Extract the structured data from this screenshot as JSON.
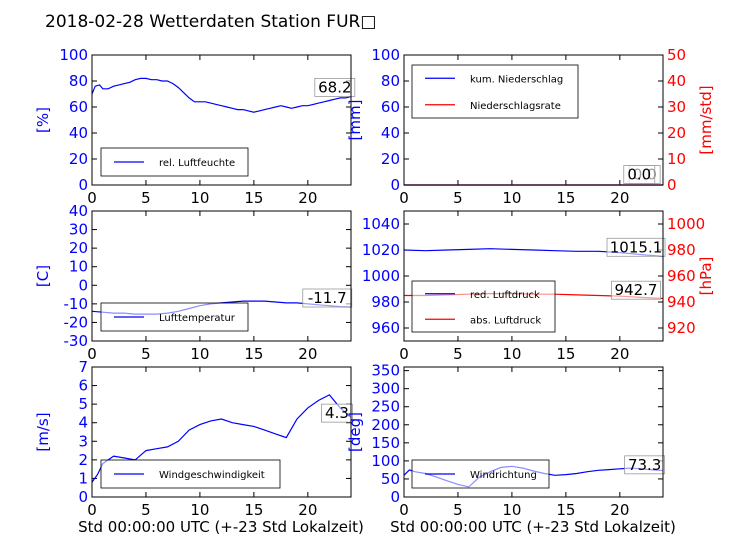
{
  "figure_title": "2018-02-28 Wetterdaten Station FUR□",
  "colors": {
    "blue": "#0000ff",
    "red": "#ff0000",
    "black": "#000000"
  },
  "chart_data": [
    {
      "type": "line",
      "id": "humidity",
      "ylabel": "[%]",
      "xlim": [
        0,
        24
      ],
      "ylim": [
        0,
        100
      ],
      "xticks": [
        0,
        5,
        10,
        15,
        20
      ],
      "yticks": [
        0,
        20,
        40,
        60,
        80,
        100
      ],
      "series": [
        {
          "name": "rel. Luftfeuchte",
          "color": "#0000ff",
          "x": [
            0,
            0.3,
            0.7,
            1,
            1.5,
            2,
            2.5,
            3,
            3.5,
            4,
            4.5,
            5,
            5.5,
            6,
            6.5,
            7,
            7.5,
            8,
            8.5,
            9,
            9.5,
            10,
            10.5,
            11,
            11.5,
            12,
            12.5,
            13,
            13.5,
            14,
            14.5,
            15,
            15.5,
            16,
            16.5,
            17,
            17.5,
            18,
            18.5,
            19,
            19.5,
            20,
            20.5,
            21,
            21.5,
            22,
            22.5,
            23,
            23.5,
            24
          ],
          "y": [
            70,
            76,
            77,
            74,
            74,
            76,
            77,
            78,
            79,
            81,
            82,
            82,
            81,
            81,
            80,
            80,
            78,
            75,
            71,
            67,
            64,
            64,
            64,
            63,
            62,
            61,
            60,
            59,
            58,
            58,
            57,
            56,
            57,
            58,
            59,
            60,
            61,
            60,
            59,
            60,
            61,
            61,
            62,
            63,
            64,
            65,
            66,
            67,
            67,
            68
          ]
        }
      ],
      "annotations": [
        {
          "text": "68.2",
          "x": 22.5,
          "y": 72
        }
      ],
      "legend": {
        "position": "lower-left"
      }
    },
    {
      "type": "line",
      "id": "precipitation",
      "ylabel": "[mm]",
      "y2label": "[mm/std]",
      "xlim": [
        0,
        24
      ],
      "ylim": [
        0,
        100
      ],
      "y2lim": [
        0,
        50
      ],
      "xticks": [
        0,
        5,
        10,
        15,
        20
      ],
      "yticks": [
        0,
        20,
        40,
        60,
        80,
        100
      ],
      "y2ticks": [
        0,
        10,
        20,
        30,
        40,
        50
      ],
      "series": [
        {
          "name": "kum. Niederschlag",
          "color": "#0000ff",
          "axis": "left",
          "x": [
            0,
            24
          ],
          "y": [
            0,
            0
          ]
        },
        {
          "name": "Niederschlagsrate",
          "color": "#ff0000",
          "axis": "right",
          "x": [
            0,
            24
          ],
          "y": [
            0,
            0
          ]
        }
      ],
      "annotations": [
        {
          "text": "0.0",
          "x": 22.3,
          "y": 5
        },
        {
          "text": "0.0",
          "x": 21.8,
          "y": 5
        }
      ],
      "legend": {
        "position": "upper-left"
      }
    },
    {
      "type": "line",
      "id": "temperature",
      "ylabel": "[C]",
      "xlim": [
        0,
        24
      ],
      "ylim": [
        -30,
        40
      ],
      "xticks": [
        0,
        5,
        10,
        15,
        20
      ],
      "yticks": [
        -30,
        -20,
        -10,
        0,
        10,
        20,
        30,
        40
      ],
      "series": [
        {
          "name": "Lufttemperatur",
          "color": "#0000ff",
          "x": [
            0,
            1,
            2,
            3,
            4,
            5,
            6,
            7,
            8,
            9,
            10,
            11,
            12,
            13,
            14,
            15,
            16,
            17,
            18,
            19,
            20,
            21,
            22,
            23,
            24
          ],
          "y": [
            -14,
            -14.5,
            -15,
            -15,
            -15.5,
            -15.5,
            -15.5,
            -15,
            -14,
            -12.5,
            -11,
            -10,
            -9.5,
            -9,
            -8.5,
            -8.5,
            -8.5,
            -9,
            -9.5,
            -9.5,
            -10,
            -10.5,
            -11,
            -11.5,
            -11.7
          ]
        }
      ],
      "annotations": [
        {
          "text": "-11.7",
          "x": 21.8,
          "y": -9
        }
      ],
      "legend": {
        "position": "lower-left"
      }
    },
    {
      "type": "line",
      "id": "pressure",
      "y2label": "[hPa]",
      "xlim": [
        0,
        24
      ],
      "ylim": [
        950,
        1050
      ],
      "y2lim": [
        910,
        1010
      ],
      "xticks": [
        0,
        5,
        10,
        15,
        20
      ],
      "yticks": [
        960,
        980,
        1000,
        1020,
        1040
      ],
      "y2ticks": [
        920,
        940,
        960,
        980,
        1000
      ],
      "series": [
        {
          "name": "red. Luftdruck",
          "color": "#0000ff",
          "axis": "left",
          "x": [
            0,
            2,
            4,
            6,
            8,
            10,
            12,
            14,
            16,
            18,
            20,
            22,
            24
          ],
          "y": [
            1020,
            1019.5,
            1020,
            1020.5,
            1021,
            1020.5,
            1020,
            1019.5,
            1019,
            1019,
            1018,
            1016.5,
            1015.1
          ]
        },
        {
          "name": "abs. Luftdruck",
          "color": "#ff0000",
          "axis": "right",
          "x": [
            0,
            2,
            4,
            6,
            8,
            10,
            12,
            14,
            16,
            18,
            20,
            22,
            24
          ],
          "y": [
            945,
            945,
            945.5,
            946,
            946.5,
            946.5,
            946,
            946,
            945.5,
            945,
            944.5,
            943.5,
            942.7
          ]
        }
      ],
      "annotations": [
        {
          "text": "1015.1",
          "x": 21.5,
          "y": 1019
        },
        {
          "text": "942.7",
          "x": 21.5,
          "y": 986
        }
      ],
      "legend": {
        "position": "lower-left"
      }
    },
    {
      "type": "line",
      "id": "windspeed",
      "ylabel": "[m/s]",
      "xlim": [
        0,
        24
      ],
      "ylim": [
        0,
        7
      ],
      "xticks": [
        0,
        5,
        10,
        15,
        20
      ],
      "yticks": [
        0,
        1,
        2,
        3,
        4,
        5,
        6,
        7
      ],
      "series": [
        {
          "name": "Windgeschwindigkeit",
          "color": "#0000ff",
          "x": [
            0,
            0.5,
            1,
            1.5,
            2,
            3,
            4,
            5,
            6,
            7,
            8,
            9,
            10,
            11,
            12,
            13,
            14,
            15,
            16,
            17,
            18,
            19,
            20,
            21,
            22,
            23,
            24
          ],
          "y": [
            0.8,
            1.2,
            1.8,
            2.0,
            2.2,
            2.1,
            2.0,
            2.5,
            2.6,
            2.7,
            3.0,
            3.6,
            3.9,
            4.1,
            4.2,
            4.0,
            3.9,
            3.8,
            3.6,
            3.4,
            3.2,
            4.2,
            4.8,
            5.2,
            5.5,
            4.8,
            4.3
          ]
        }
      ],
      "annotations": [
        {
          "text": "4.3",
          "x": 22.7,
          "y": 4.3
        }
      ],
      "legend": {
        "position": "lower-left"
      }
    },
    {
      "type": "line",
      "id": "winddirection",
      "ylabel": "[deg]",
      "xlim": [
        0,
        24
      ],
      "ylim": [
        0,
        360
      ],
      "xticks": [
        0,
        5,
        10,
        15,
        20
      ],
      "yticks": [
        0,
        50,
        100,
        150,
        200,
        250,
        300,
        350
      ],
      "series": [
        {
          "name": "Windrichtung",
          "color": "#0000ff",
          "x": [
            0,
            0.5,
            1,
            2,
            3,
            4,
            5,
            6,
            7,
            8,
            9,
            10,
            11,
            12,
            13,
            14,
            15,
            16,
            17,
            18,
            19,
            20,
            21,
            22,
            23,
            24
          ],
          "y": [
            60,
            75,
            70,
            65,
            55,
            45,
            35,
            28,
            55,
            70,
            82,
            85,
            80,
            72,
            65,
            60,
            62,
            65,
            70,
            74,
            76,
            78,
            80,
            78,
            75,
            73.3
          ]
        }
      ],
      "annotations": [
        {
          "text": "73.3",
          "x": 22.3,
          "y": 78
        }
      ],
      "legend": {
        "position": "lower-left"
      }
    }
  ],
  "xlabels": [
    "Std 00:00:00 UTC (+-23 Std Lokalzeit)",
    "Std 00:00:00 UTC (+-23 Std Lokalzeit)"
  ]
}
